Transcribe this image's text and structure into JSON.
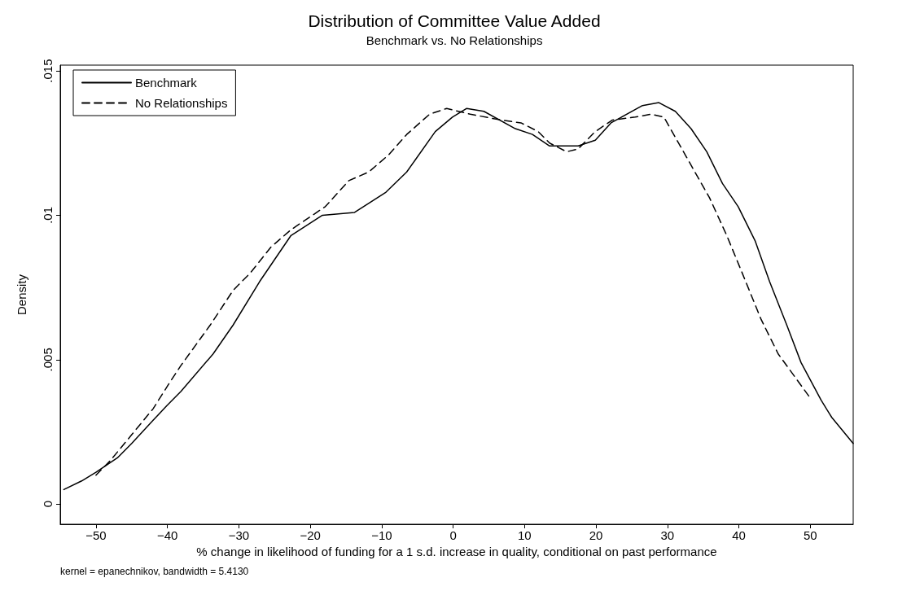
{
  "chart_data": {
    "type": "line",
    "title": "Distribution of Committee Value Added",
    "subtitle": "Benchmark vs. No Relationships",
    "xlabel": "% change in likelihood of funding for a 1 s.d. increase in quality, conditional on past performance",
    "ylabel": "Density",
    "annotations": [
      "kernel = epanechnikov, bandwidth = 5.4130"
    ],
    "xlim": [
      -55,
      56
    ],
    "xticks": [
      -50,
      -40,
      -30,
      -20,
      -10,
      0,
      10,
      20,
      30,
      40,
      50
    ],
    "ylim": [
      -0.0007,
      0.0152
    ],
    "yticks": [
      {
        "value": 0,
        "label": "0"
      },
      {
        "value": 0.005,
        "label": ".005"
      },
      {
        "value": 0.01,
        "label": ".01"
      },
      {
        "value": 0.015,
        "label": ".015"
      }
    ],
    "grid": false,
    "legend": "top left",
    "marker": "none",
    "series": [
      {
        "name": "Benchmark",
        "color": "#000000",
        "line_style": "solid",
        "x": [
          -54.5,
          -52,
          -50,
          -47,
          -45,
          -42,
          -40.1,
          -38.1,
          -33.6,
          -30.8,
          -27.1,
          -22.7,
          -18.3,
          -13.8,
          -9.4,
          -6.5,
          -2.5,
          -0.1,
          1.9,
          4.3,
          8.7,
          11.1,
          13.5,
          17.5,
          19.9,
          22.1,
          26.5,
          28.8,
          31.1,
          33.3,
          35.5,
          37.7,
          39.9,
          42.3,
          44.3,
          46.7,
          48.7,
          51.5,
          53,
          56
        ],
        "values": [
          0.0005,
          0.0008,
          0.0011,
          0.0016,
          0.0021,
          0.0029,
          0.0034,
          0.0039,
          0.0052,
          0.0062,
          0.0077,
          0.0093,
          0.01,
          0.0101,
          0.0108,
          0.0115,
          0.0129,
          0.0134,
          0.0137,
          0.0136,
          0.013,
          0.0128,
          0.0124,
          0.0124,
          0.0126,
          0.0132,
          0.0138,
          0.0139,
          0.0136,
          0.013,
          0.0122,
          0.0111,
          0.0103,
          0.0091,
          0.0077,
          0.0062,
          0.0049,
          0.0036,
          0.003,
          0.0021
        ]
      },
      {
        "name": "No Relationships",
        "color": "#000000",
        "line_style": "dashed",
        "x": [
          -50,
          -48,
          -45,
          -42,
          -39.7,
          -38.1,
          -34,
          -30.8,
          -28.4,
          -25.5,
          -22.7,
          -17.9,
          -14.6,
          -11.8,
          -9,
          -6.5,
          -3.3,
          -0.9,
          2.4,
          6.7,
          9.5,
          11.9,
          13.5,
          15.9,
          17.5,
          19.9,
          22.3,
          25.5,
          27.7,
          29.5,
          32.7,
          35.9,
          38.3,
          40.3,
          43.1,
          45.5,
          49.9
        ],
        "values": [
          0.001,
          0.0015,
          0.0024,
          0.0033,
          0.0042,
          0.0048,
          0.0062,
          0.0074,
          0.008,
          0.0089,
          0.0095,
          0.0103,
          0.0112,
          0.0115,
          0.0121,
          0.0128,
          0.0135,
          0.0137,
          0.0135,
          0.0133,
          0.0132,
          0.0129,
          0.0125,
          0.0122,
          0.0123,
          0.0129,
          0.0133,
          0.0134,
          0.0135,
          0.0134,
          0.012,
          0.0106,
          0.0093,
          0.0081,
          0.0064,
          0.0052,
          0.0037
        ]
      }
    ]
  }
}
